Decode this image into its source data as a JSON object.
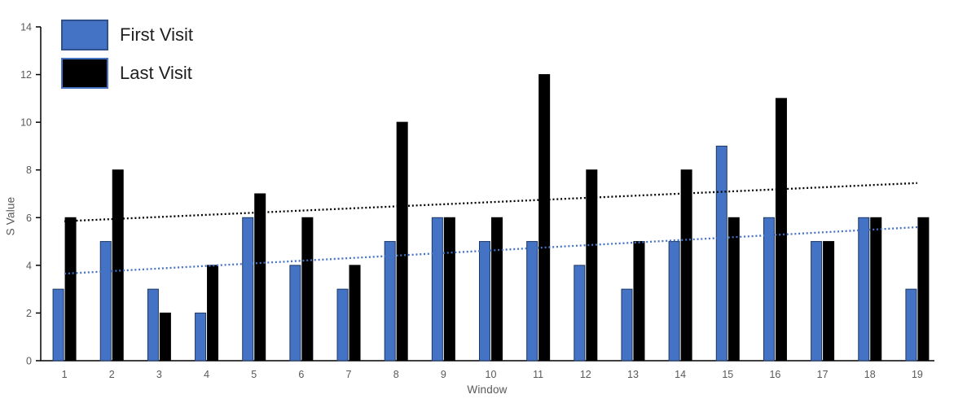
{
  "chart_data": {
    "type": "bar",
    "title": "",
    "xlabel": "Window",
    "ylabel": "S Value",
    "categories": [
      "1",
      "2",
      "3",
      "4",
      "5",
      "6",
      "7",
      "8",
      "9",
      "10",
      "11",
      "12",
      "13",
      "14",
      "15",
      "16",
      "17",
      "18",
      "19"
    ],
    "series": [
      {
        "name": "First Visit",
        "color": "#4472C4",
        "border_color": "#1F3864",
        "legend_border_color": "#2F528F",
        "values": [
          3,
          5,
          3,
          2,
          6,
          4,
          3,
          5,
          6,
          5,
          5,
          4,
          3,
          5,
          9,
          6,
          5,
          6,
          3
        ]
      },
      {
        "name": "Last Visit",
        "color": "#000000",
        "border_color": "#000000",
        "legend_border_color": "#4472C4",
        "values": [
          6,
          8,
          2,
          4,
          7,
          6,
          4,
          10,
          6,
          6,
          12,
          8,
          5,
          8,
          6,
          11,
          5,
          6,
          6
        ]
      }
    ],
    "trendlines": [
      {
        "series": "First Visit",
        "style": "dotted",
        "color": "#4472C4",
        "start_value": 3.65,
        "end_value": 5.6
      },
      {
        "series": "Last Visit",
        "style": "dotted",
        "color": "#000000",
        "start_value": 5.85,
        "end_value": 7.45
      }
    ],
    "ylim": [
      0,
      14
    ],
    "y_ticks": [
      0,
      2,
      4,
      6,
      8,
      10,
      12,
      14
    ],
    "grid": false,
    "legend_position": "top-left",
    "axis_color": "#000000",
    "tick_label_color": "#595959"
  }
}
